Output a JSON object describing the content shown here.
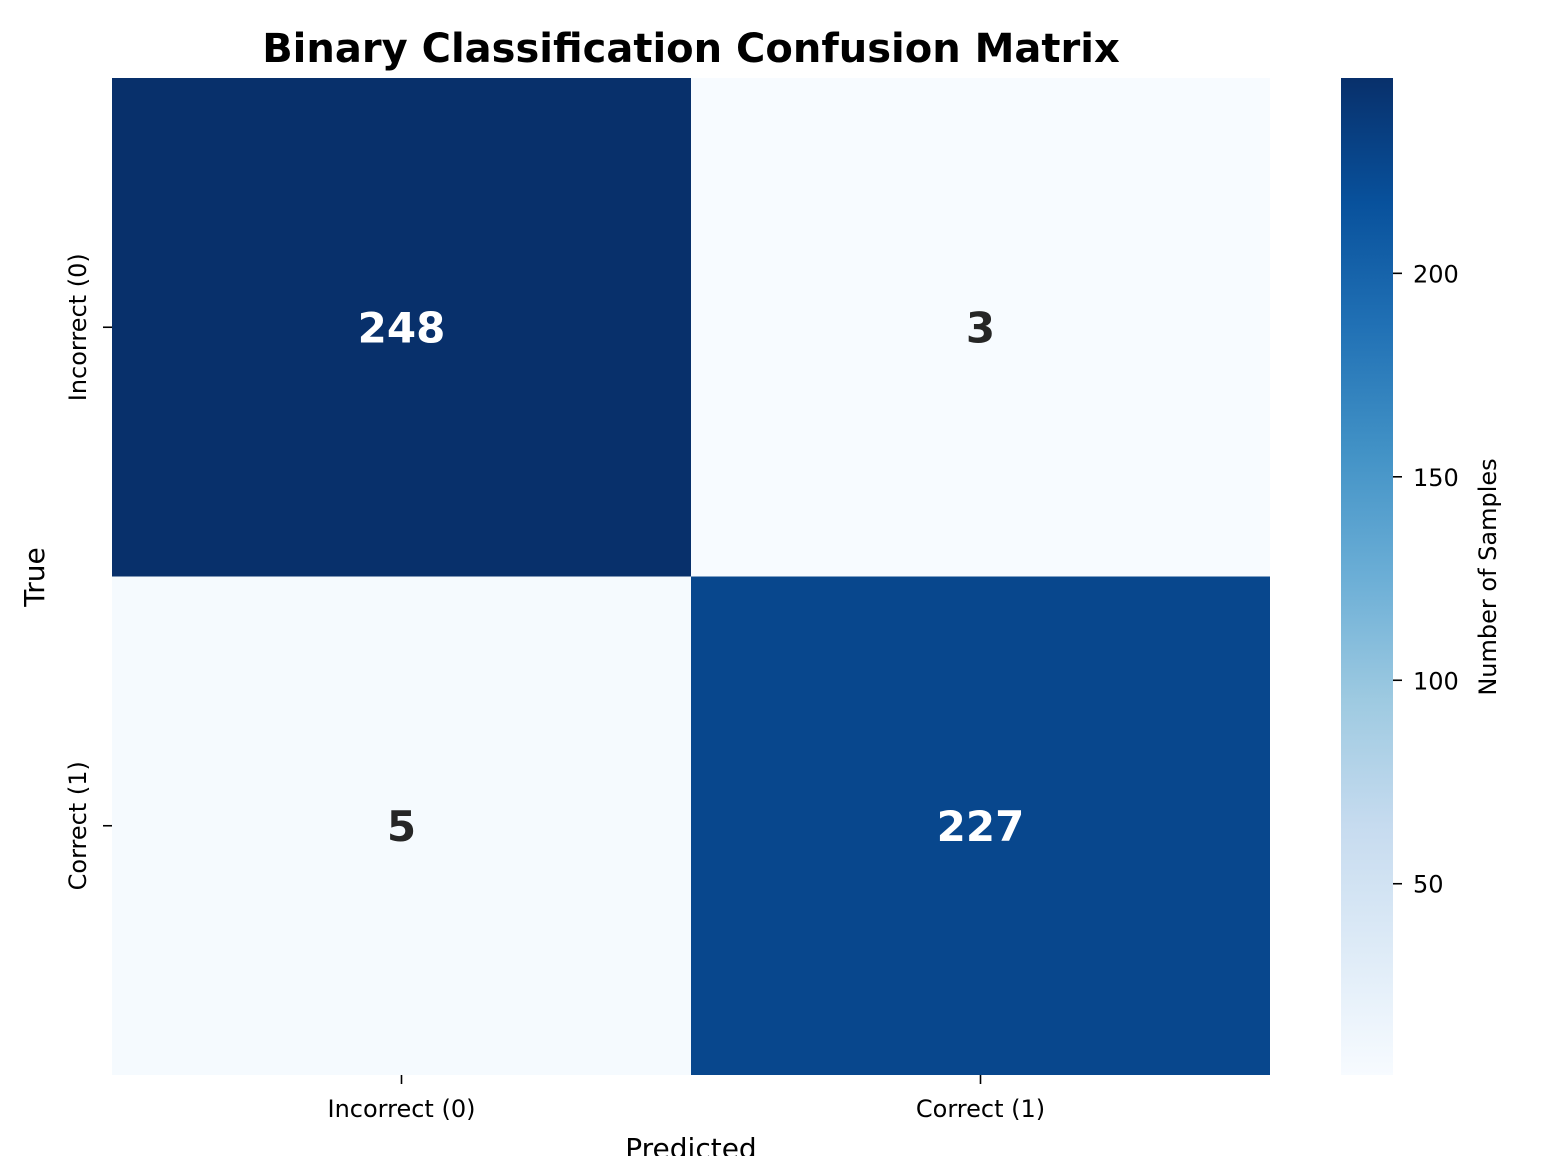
{
  "chart_data": {
    "type": "heatmap",
    "title": "Binary Classification Confusion Matrix",
    "xlabel": "Predicted",
    "ylabel": "True",
    "x_categories": [
      "Incorrect (0)",
      "Correct (1)"
    ],
    "y_categories": [
      "Incorrect (0)",
      "Correct (1)"
    ],
    "values": [
      [
        248,
        3
      ],
      [
        5,
        227
      ]
    ],
    "colorbar": {
      "label": "Number of Samples",
      "range": [
        3,
        248
      ],
      "ticks": [
        50,
        100,
        150,
        200
      ],
      "colormap": "Blues"
    },
    "text_colors": {
      "on_dark": "#ffffff",
      "on_light": "#262626"
    },
    "grid": false
  }
}
